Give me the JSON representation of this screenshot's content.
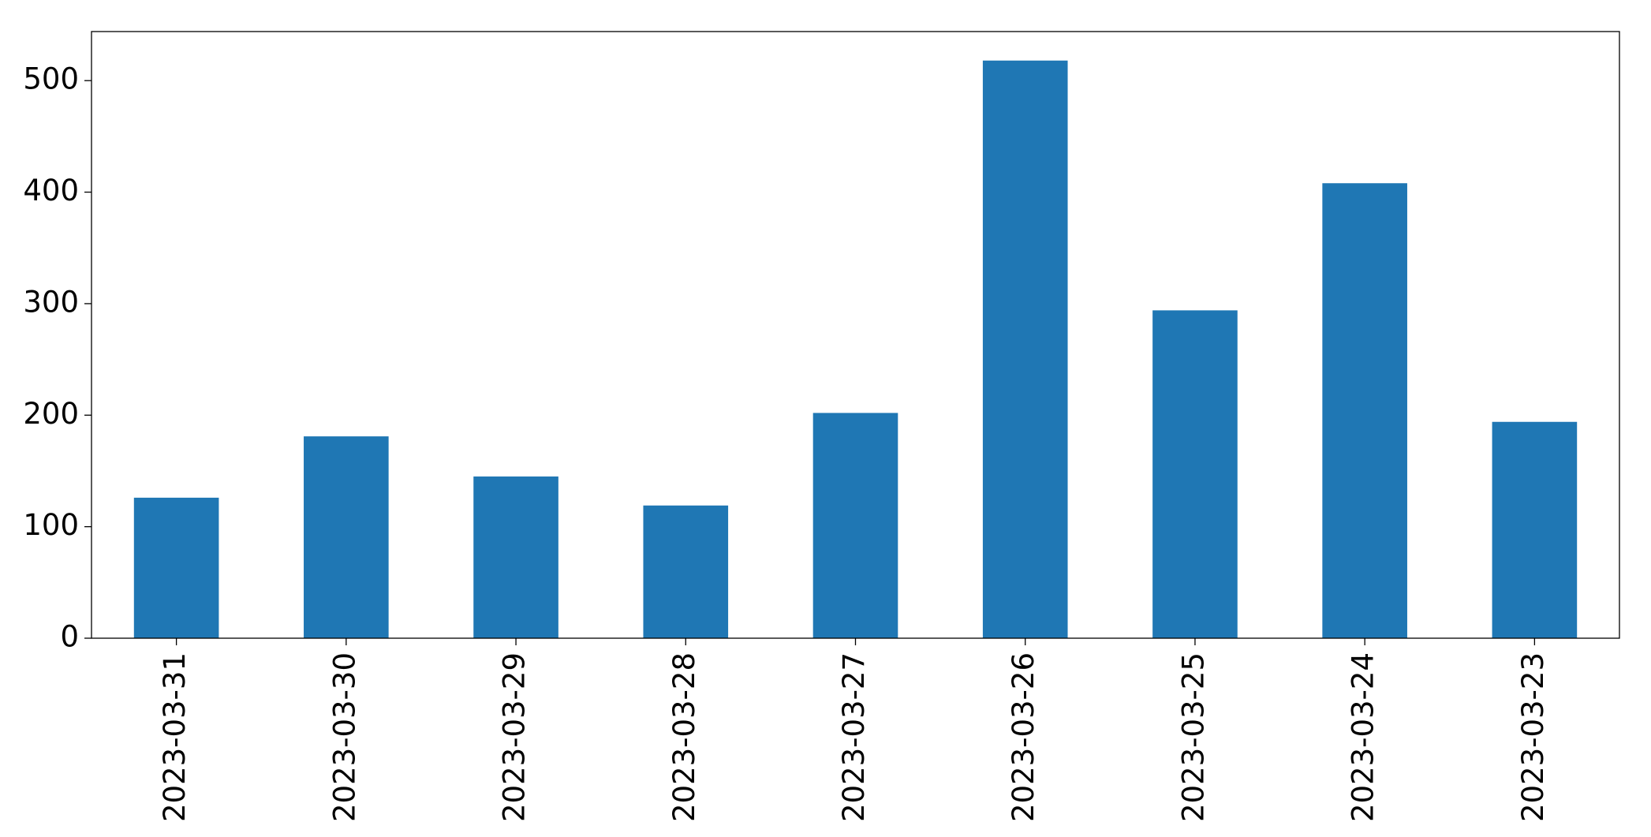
{
  "chart_data": {
    "type": "bar",
    "categories": [
      "2023-03-31",
      "2023-03-30",
      "2023-03-29",
      "2023-03-28",
      "2023-03-27",
      "2023-03-26",
      "2023-03-25",
      "2023-03-24",
      "2023-03-23"
    ],
    "values": [
      126,
      181,
      145,
      119,
      202,
      518,
      294,
      408,
      194
    ],
    "color": "#1f77b4",
    "ylim": [
      0,
      544
    ],
    "yticks": [
      0,
      100,
      200,
      300,
      400,
      500
    ],
    "grid": false
  }
}
